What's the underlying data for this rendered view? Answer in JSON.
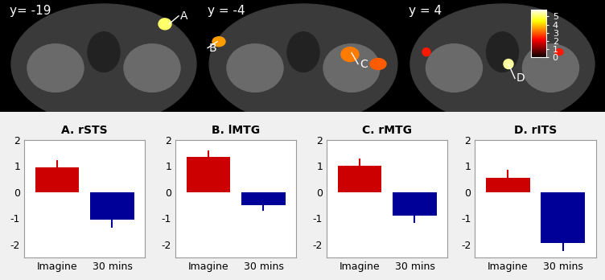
{
  "image_panel": {
    "slices": [
      "y= -19",
      "y = -4",
      "y = 4"
    ],
    "region_labels": [
      "A",
      "B",
      "C",
      "D"
    ],
    "colorbar": {
      "range": [
        0,
        5.8
      ],
      "ticks": [
        0,
        1,
        2,
        3,
        4,
        5
      ]
    }
  },
  "chart_data": [
    {
      "type": "bar",
      "title": "A. rSTS",
      "categories": [
        "Imagine",
        "30 mins"
      ],
      "values": [
        0.95,
        -1.05
      ],
      "errors": [
        0.27,
        0.3
      ],
      "colors": [
        "#cc0000",
        "#000099"
      ],
      "ylim": [
        -2.5,
        2
      ],
      "yticks": [
        -2,
        -1,
        0,
        1,
        2
      ]
    },
    {
      "type": "bar",
      "title": "B. lMTG",
      "categories": [
        "Imagine",
        "30 mins"
      ],
      "values": [
        1.35,
        -0.5
      ],
      "errors": [
        0.25,
        0.22
      ],
      "colors": [
        "#cc0000",
        "#000099"
      ],
      "ylim": [
        -2.5,
        2
      ],
      "yticks": [
        -2,
        -1,
        0,
        1,
        2
      ]
    },
    {
      "type": "bar",
      "title": "C. rMTG",
      "categories": [
        "Imagine",
        "30 mins"
      ],
      "values": [
        1.0,
        -0.88
      ],
      "errors": [
        0.28,
        0.28
      ],
      "colors": [
        "#cc0000",
        "#000099"
      ],
      "ylim": [
        -2.5,
        2
      ],
      "yticks": [
        -2,
        -1,
        0,
        1,
        2
      ]
    },
    {
      "type": "bar",
      "title": "D. rITS",
      "categories": [
        "Imagine",
        "30 mins"
      ],
      "values": [
        0.55,
        -1.95
      ],
      "errors": [
        0.3,
        0.3
      ],
      "colors": [
        "#cc0000",
        "#000099"
      ],
      "ylim": [
        -2.5,
        2
      ],
      "yticks": [
        -2,
        -1,
        0,
        1,
        2
      ]
    }
  ]
}
